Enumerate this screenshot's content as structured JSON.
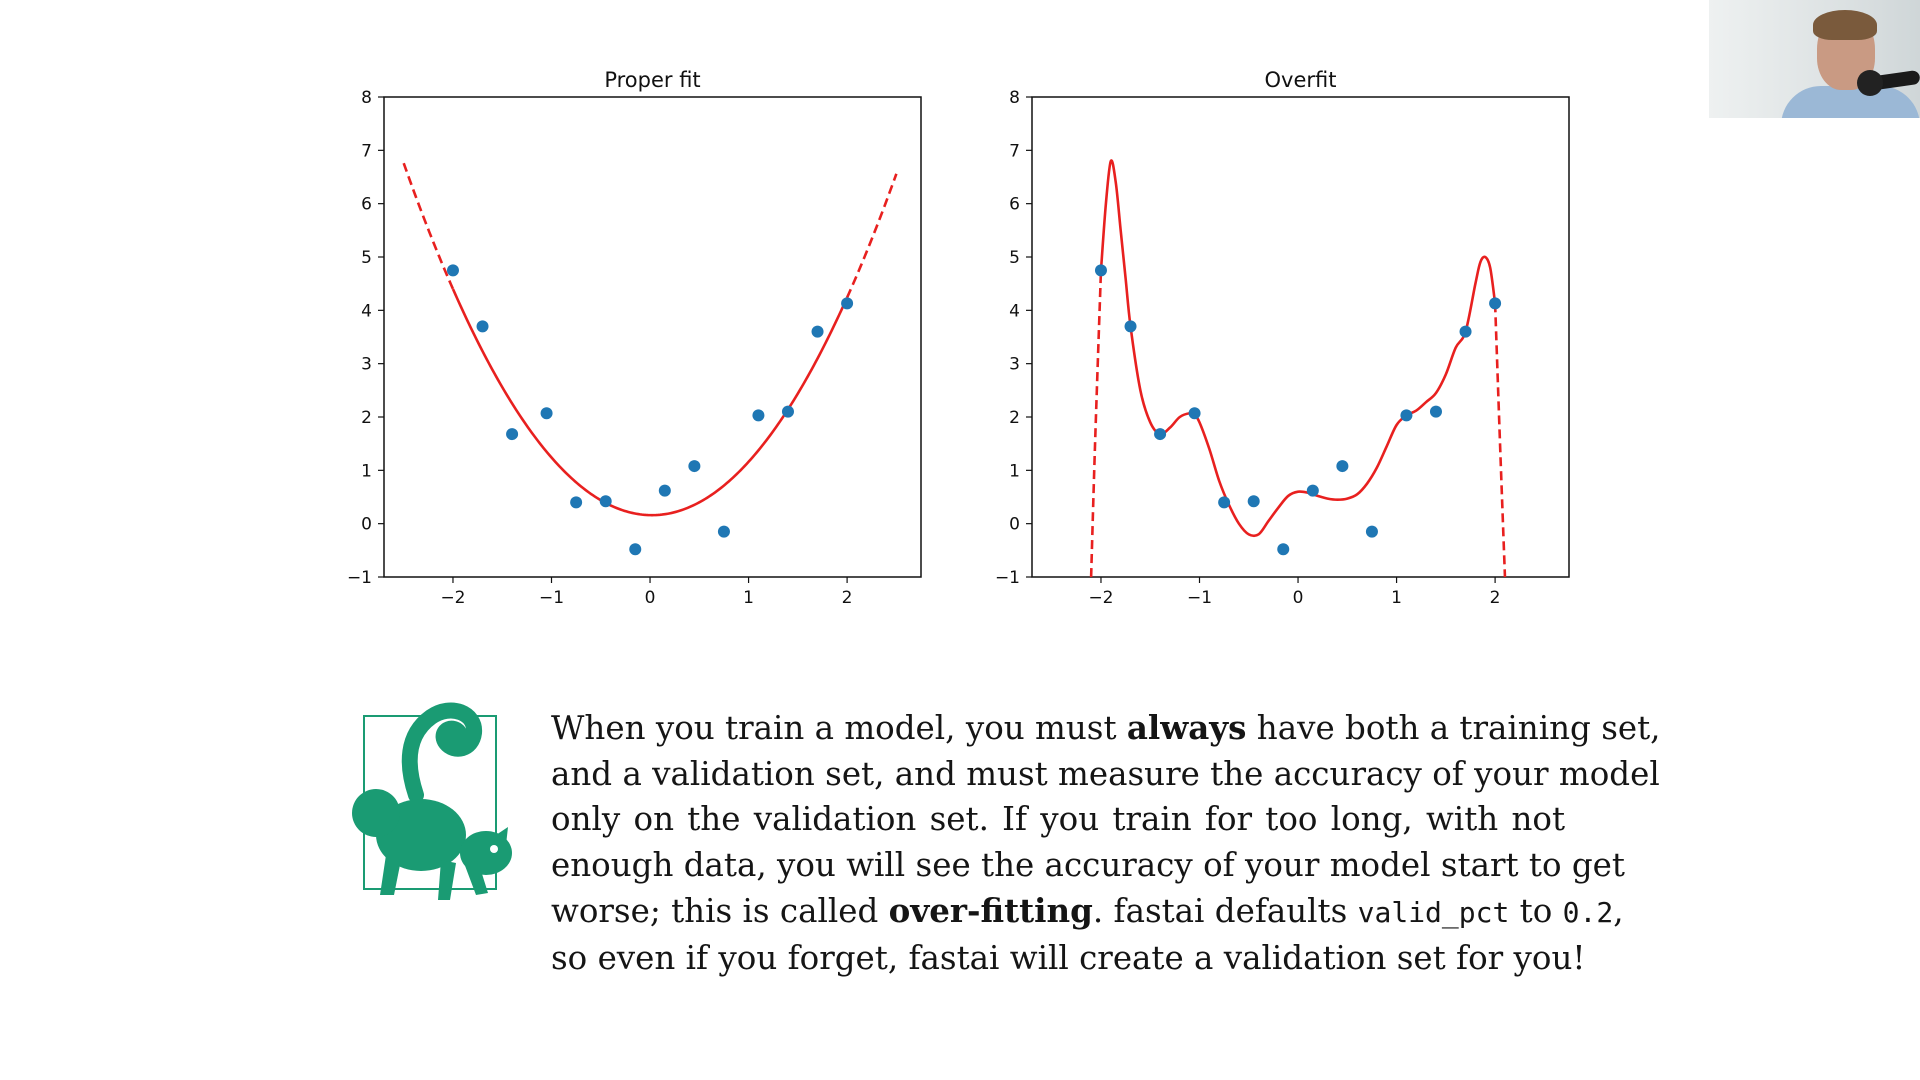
{
  "colors": {
    "scatter": "#1f77b4",
    "fit_line": "#e8201f",
    "note_icon": "#1a9b73"
  },
  "chart_data": [
    {
      "type": "scatter",
      "title": "Proper fit",
      "xlim": [
        -2.7,
        2.75
      ],
      "ylim": [
        -1,
        8
      ],
      "xticks": [
        "−2",
        "−1",
        "0",
        "1",
        "2"
      ],
      "xtick_values": [
        -2,
        -1,
        0,
        1,
        2
      ],
      "yticks": [
        "−1",
        "0",
        "1",
        "2",
        "3",
        "4",
        "5",
        "6",
        "7",
        "8"
      ],
      "ytick_values": [
        -1,
        0,
        1,
        2,
        3,
        4,
        5,
        6,
        7,
        8
      ],
      "series": [
        {
          "kind": "points",
          "x": [
            -2.0,
            -1.7,
            -1.4,
            -1.05,
            -0.75,
            -0.45,
            -0.15,
            0.15,
            0.45,
            0.75,
            1.1,
            1.4,
            1.7,
            2.0
          ],
          "y": [
            4.75,
            3.7,
            1.68,
            2.07,
            0.4,
            0.42,
            -0.48,
            0.62,
            1.08,
            -0.15,
            2.03,
            2.1,
            3.6,
            4.13
          ]
        },
        {
          "kind": "curve",
          "style": "solid in data range, dashed outside",
          "fit": "quadratic",
          "coef": [
            1.04,
            -0.04,
            0.16
          ],
          "x_range": [
            -2.5,
            2.5
          ],
          "solid_range": [
            -2.0,
            2.0
          ]
        }
      ]
    },
    {
      "type": "scatter",
      "title": "Overfit",
      "xlim": [
        -2.7,
        2.75
      ],
      "ylim": [
        -1,
        8
      ],
      "xticks": [
        "−2",
        "−1",
        "0",
        "1",
        "2"
      ],
      "xtick_values": [
        -2,
        -1,
        0,
        1,
        2
      ],
      "yticks": [
        "−1",
        "0",
        "1",
        "2",
        "3",
        "4",
        "5",
        "6",
        "7",
        "8"
      ],
      "ytick_values": [
        -1,
        0,
        1,
        2,
        3,
        4,
        5,
        6,
        7,
        8
      ],
      "series": [
        {
          "kind": "points",
          "x": [
            -2.0,
            -1.7,
            -1.4,
            -1.05,
            -0.75,
            -0.45,
            -0.15,
            0.15,
            0.45,
            0.75,
            1.1,
            1.4,
            1.7,
            2.0
          ],
          "y": [
            4.75,
            3.7,
            1.68,
            2.07,
            0.4,
            0.42,
            -0.48,
            0.62,
            1.08,
            -0.15,
            2.03,
            2.1,
            3.6,
            4.13
          ]
        },
        {
          "kind": "curve",
          "style": "solid in data range, dashed outside",
          "fit": "high-degree polynomial",
          "x": [
            -2.1,
            -2.06,
            -2.0,
            -1.95,
            -1.9,
            -1.85,
            -1.8,
            -1.75,
            -1.7,
            -1.6,
            -1.5,
            -1.4,
            -1.3,
            -1.2,
            -1.1,
            -1.05,
            -1.0,
            -0.9,
            -0.8,
            -0.7,
            -0.6,
            -0.5,
            -0.4,
            -0.3,
            -0.2,
            -0.1,
            0.0,
            0.1,
            0.2,
            0.3,
            0.4,
            0.5,
            0.6,
            0.7,
            0.8,
            0.9,
            1.0,
            1.1,
            1.2,
            1.3,
            1.4,
            1.5,
            1.6,
            1.7,
            1.8,
            1.85,
            1.9,
            1.95,
            2.0,
            2.05,
            2.1
          ],
          "y": [
            -1.0,
            1.5,
            4.75,
            6.0,
            6.8,
            6.4,
            5.5,
            4.6,
            3.7,
            2.5,
            1.9,
            1.68,
            1.8,
            2.0,
            2.07,
            2.04,
            1.9,
            1.4,
            0.8,
            0.35,
            0.0,
            -0.2,
            -0.2,
            0.05,
            0.3,
            0.52,
            0.6,
            0.58,
            0.52,
            0.47,
            0.45,
            0.47,
            0.55,
            0.75,
            1.05,
            1.45,
            1.85,
            2.03,
            2.12,
            2.28,
            2.45,
            2.8,
            3.3,
            3.6,
            4.5,
            4.9,
            5.0,
            4.8,
            4.13,
            1.5,
            -1.0
          ],
          "solid_range": [
            -2.0,
            2.0
          ]
        }
      ]
    }
  ],
  "note": {
    "lines": [
      [
        "When you train a model, you must ",
        {
          "b": "always"
        },
        " have both a training set,"
      ],
      [
        "and a validation set, and must measure the accuracy of your model"
      ],
      [
        "only on the validation set. If you train for too long, with not"
      ],
      [
        "enough data, you will see the accuracy of your model start to get"
      ],
      [
        "worse; this is called ",
        {
          "b": "over-fitting"
        },
        ". fastai defaults ",
        {
          "code": "valid_pct"
        },
        " to ",
        {
          "code": "0.2"
        },
        ","
      ],
      [
        "so even if you forget, fastai will create a validation set for you!"
      ]
    ]
  }
}
